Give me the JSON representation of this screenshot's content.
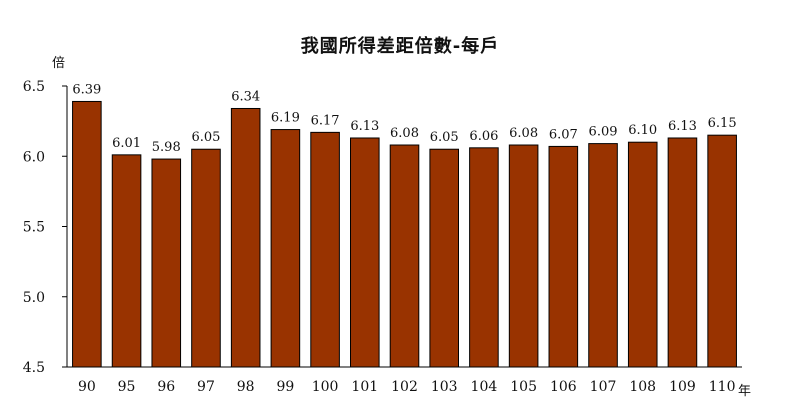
{
  "chart_data": {
    "type": "bar",
    "title": "我國所得差距倍數-每戶",
    "ylabel": "倍",
    "xlabel": "年",
    "categories": [
      "90",
      "95",
      "96",
      "97",
      "98",
      "99",
      "100",
      "101",
      "102",
      "103",
      "104",
      "105",
      "106",
      "107",
      "108",
      "109",
      "110"
    ],
    "values": [
      6.39,
      6.01,
      5.98,
      6.05,
      6.34,
      6.19,
      6.17,
      6.13,
      6.08,
      6.05,
      6.06,
      6.08,
      6.07,
      6.09,
      6.1,
      6.13,
      6.15
    ],
    "value_labels": [
      "6.39",
      "6.01",
      "5.98",
      "6.05",
      "6.34",
      "6.19",
      "6.17",
      "6.13",
      "6.08",
      "6.05",
      "6.06",
      "6.08",
      "6.07",
      "6.09",
      "6.10",
      "6.13",
      "6.15"
    ],
    "ylim": [
      4.5,
      6.5
    ],
    "yticks": [
      "4.5",
      "5.0",
      "5.5",
      "6.0",
      "6.5"
    ],
    "grid": false,
    "bar_color": "#993300",
    "bar_outline": "#000000"
  }
}
